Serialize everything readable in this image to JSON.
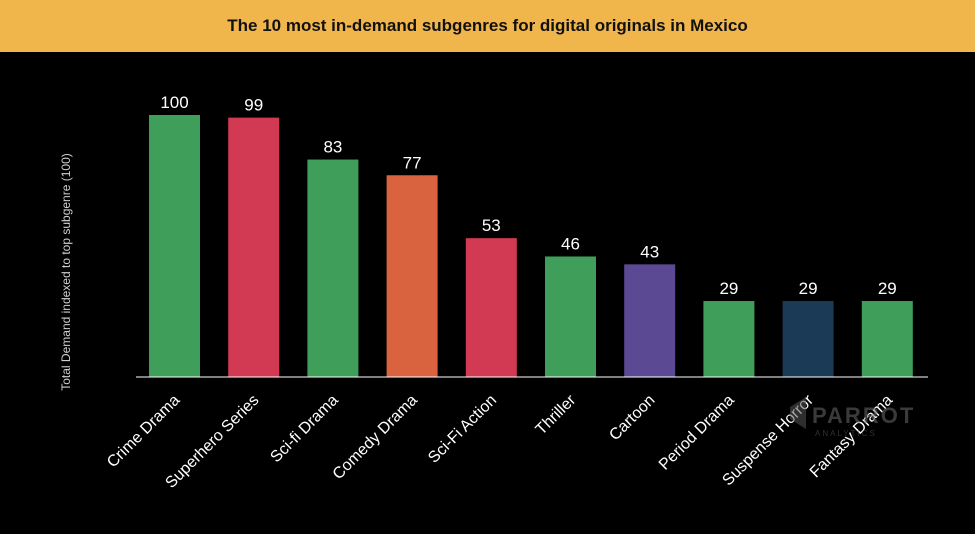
{
  "chart_data": {
    "type": "bar",
    "title": "The 10 most in-demand subgenres for digital originals in Mexico",
    "xlabel": "",
    "ylabel": "Total Demand indexed to top subgenre (100)",
    "ylim": [
      0,
      100
    ],
    "grid": false,
    "legend": "none",
    "categories": [
      "Crime Drama",
      "Superhero Series",
      "Sci-fi Drama",
      "Comedy Drama",
      "Sci-Fi Action",
      "Thriller",
      "Cartoon",
      "Period Drama",
      "Suspense Horror",
      "Fantasy Drama"
    ],
    "values": [
      100,
      99,
      83,
      77,
      53,
      46,
      43,
      29,
      29,
      29
    ],
    "data_labels": [
      "100",
      "99",
      "83",
      "77",
      "53",
      "46",
      "43",
      "29",
      "29",
      "29"
    ],
    "colors": [
      "#3f9e5a",
      "#d13a52",
      "#3f9e5a",
      "#d9633f",
      "#d13a52",
      "#3f9e5a",
      "#5b4a93",
      "#3f9e5a",
      "#1a3a55",
      "#3f9e5a"
    ]
  },
  "theme": {
    "background": "#000000",
    "title_bar": "#f0b54b",
    "axis_color": "#ffffff"
  },
  "watermark": {
    "icon": "parrot-logo-icon",
    "text": "PARROT",
    "subtext": "ANALYTICS"
  }
}
